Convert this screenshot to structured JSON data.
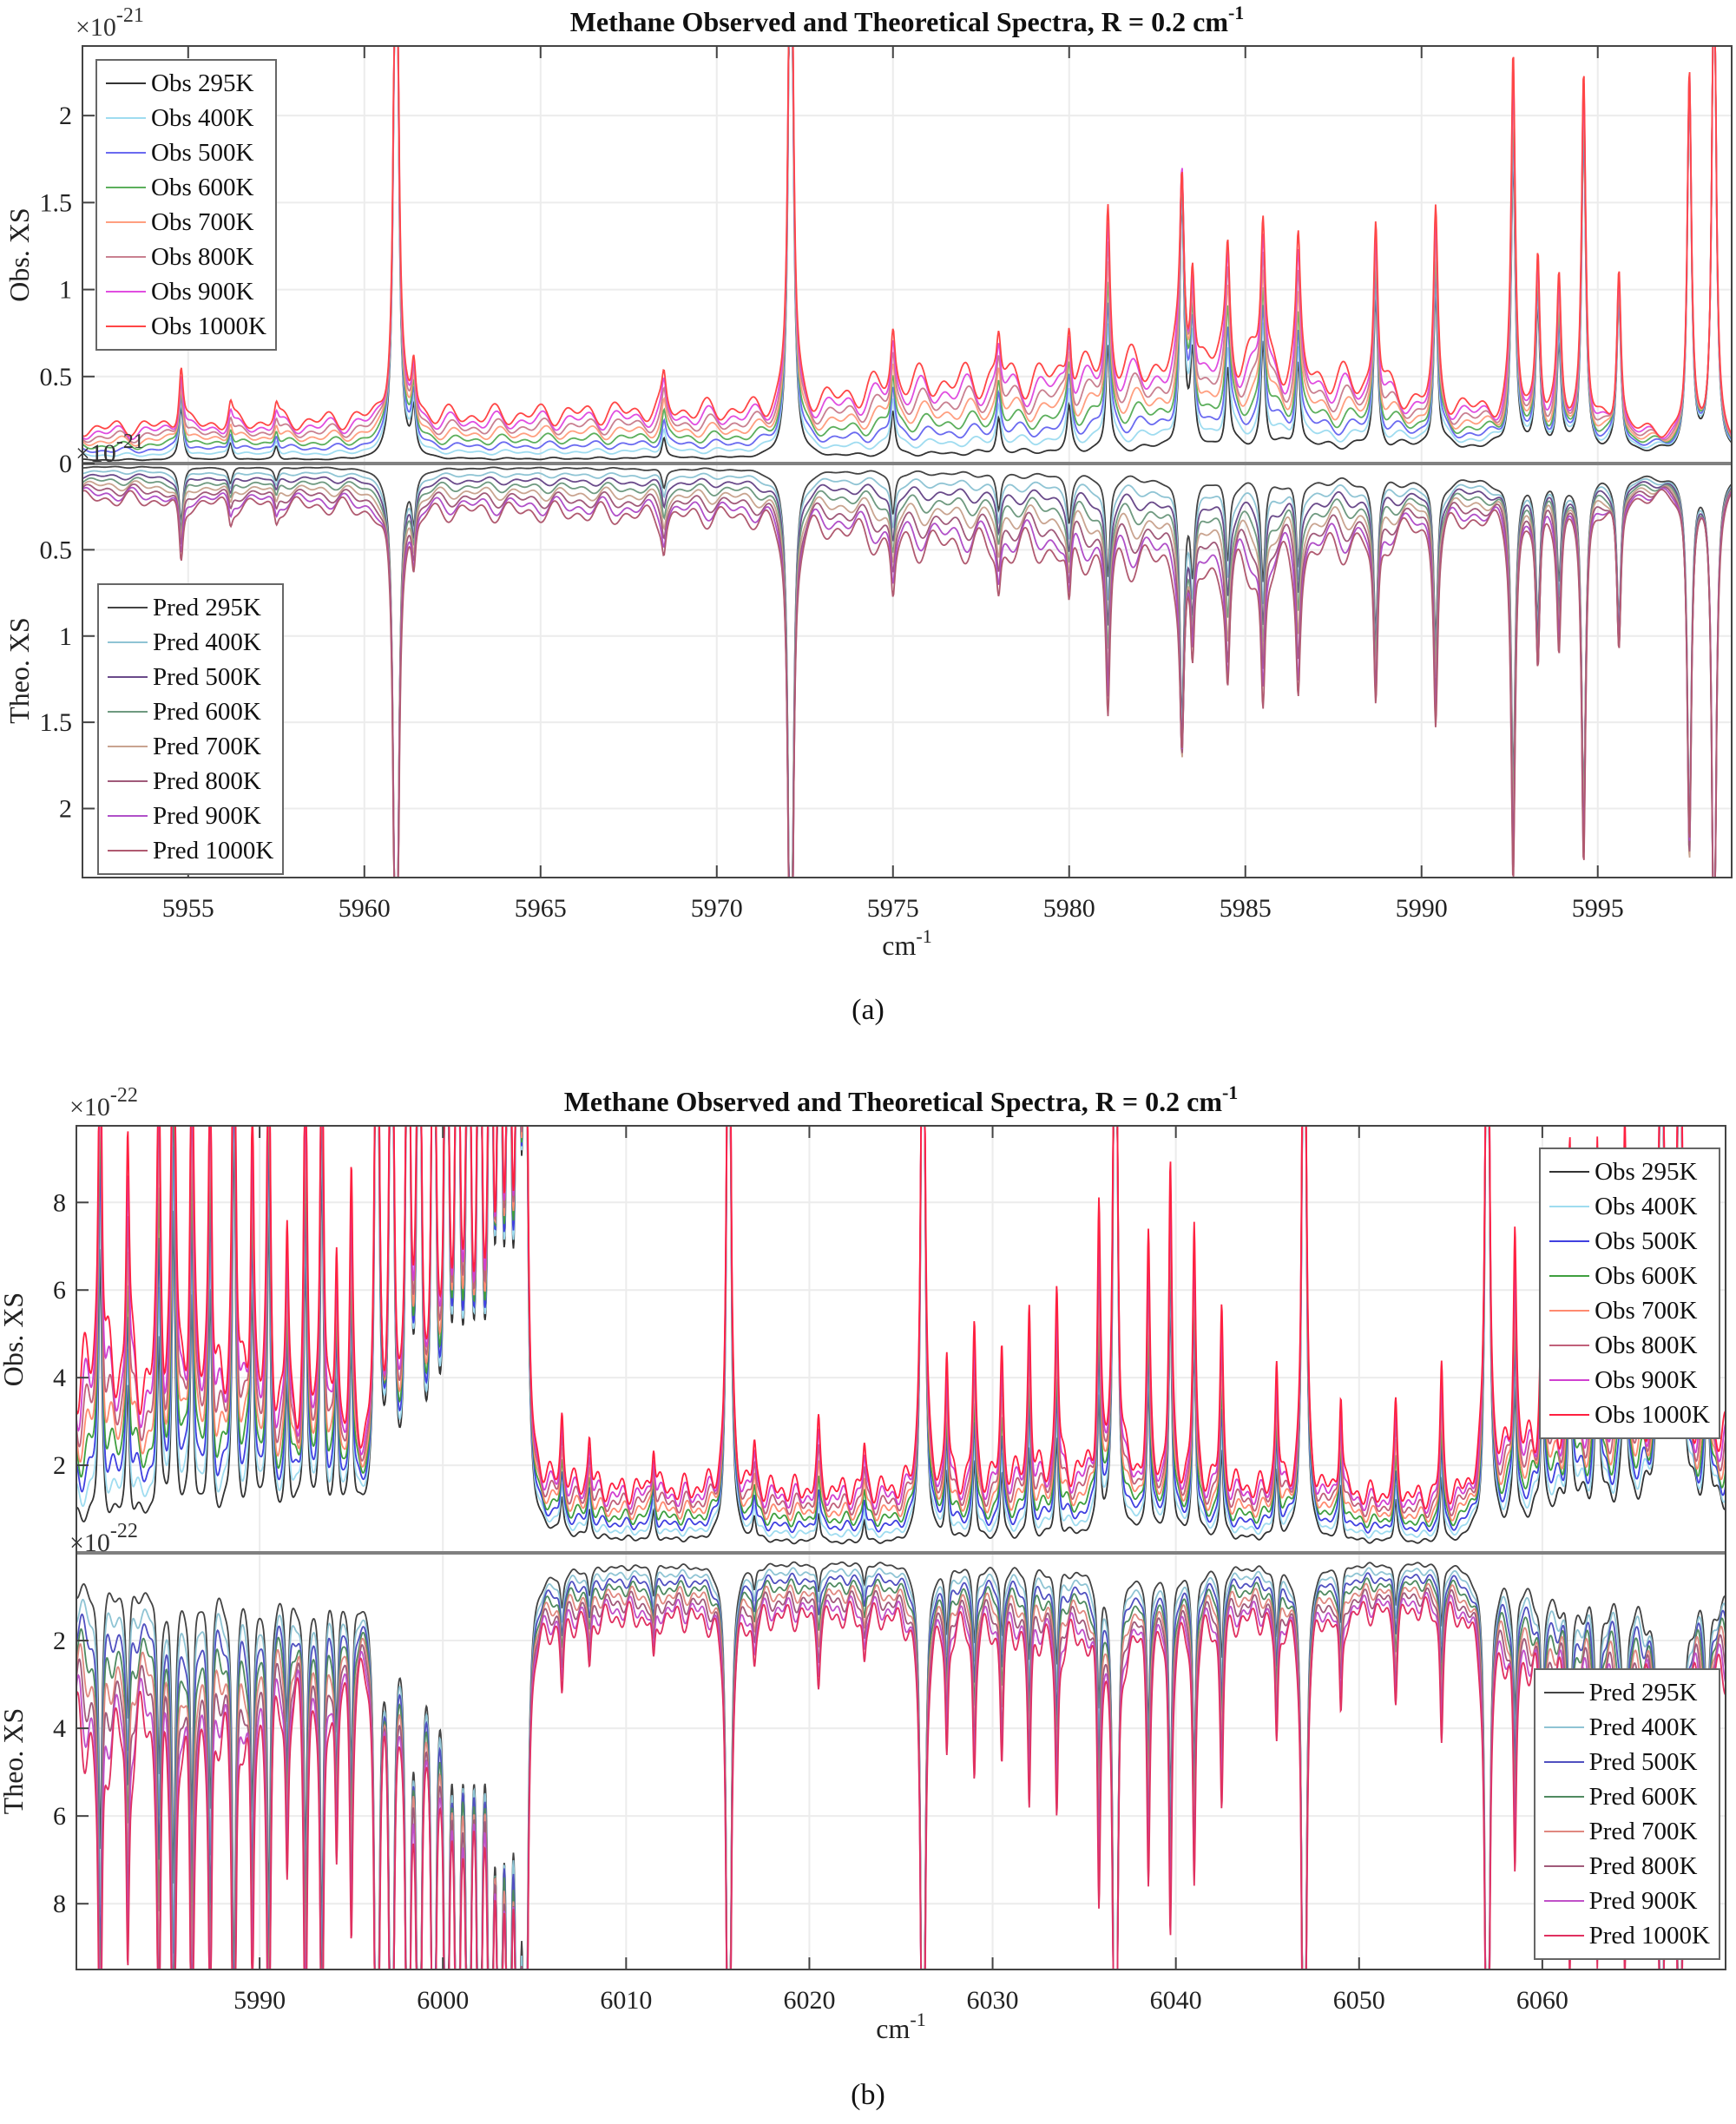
{
  "chart_data": [
    {
      "type": "line",
      "panel_caption": "(a)",
      "title": "Methane Observed and Theoretical Spectra, R = 0.2 cm",
      "title_sup": "-1",
      "xlabel": "cm",
      "xlabel_sup": "-1",
      "ylabel_top": "Obs. XS",
      "ylabel_bottom": "Theo. XS",
      "exponent_base": "×10",
      "exponent": "-21",
      "xlim": [
        5952,
        5998.8
      ],
      "ylim_top": [
        0,
        2.4
      ],
      "ylim_bottom": [
        0,
        2.4
      ],
      "xticks": [
        5955,
        5960,
        5965,
        5970,
        5975,
        5980,
        5985,
        5990,
        5995
      ],
      "yticks_top": [
        0,
        0.5,
        1,
        1.5,
        2
      ],
      "yticks_bottom": [
        0.5,
        1,
        1.5,
        2
      ],
      "grid": true,
      "legend_top_position": "top-left",
      "legend_bottom_position": "bottom-left",
      "temperatures": [
        295,
        400,
        500,
        600,
        700,
        800,
        900,
        1000
      ],
      "obs_series": [
        {
          "name": "Obs 295K",
          "color": "#333333"
        },
        {
          "name": "Obs 400K",
          "color": "#9fdcf0"
        },
        {
          "name": "Obs 500K",
          "color": "#6a6af0"
        },
        {
          "name": "Obs 600K",
          "color": "#5caf5c"
        },
        {
          "name": "Obs 700K",
          "color": "#ff9f80"
        },
        {
          "name": "Obs 800K",
          "color": "#c98090"
        },
        {
          "name": "Obs 900K",
          "color": "#e04ee0"
        },
        {
          "name": "Obs 1000K",
          "color": "#ff4646"
        }
      ],
      "pred_series": [
        {
          "name": "Pred 295K",
          "color": "#444444"
        },
        {
          "name": "Pred 400K",
          "color": "#8fc4d4"
        },
        {
          "name": "Pred 500K",
          "color": "#6a4a8a"
        },
        {
          "name": "Pred 600K",
          "color": "#6f9a80"
        },
        {
          "name": "Pred 700K",
          "color": "#c9a490"
        },
        {
          "name": "Pred 800K",
          "color": "#a05a7a"
        },
        {
          "name": "Pred 900K",
          "color": "#b050c8"
        },
        {
          "name": "Pred 1000K",
          "color": "#b05a70"
        }
      ],
      "peak_width": 0.07,
      "baseline": [
        [
          5952,
          0.02,
          0.2
        ],
        [
          5960,
          0.02,
          0.25
        ],
        [
          5968,
          0.03,
          0.3
        ],
        [
          5972,
          0.03,
          0.3
        ],
        [
          5975,
          0.05,
          0.45
        ],
        [
          5980,
          0.07,
          0.5
        ],
        [
          5985,
          0.1,
          0.6
        ],
        [
          5990,
          0.1,
          0.35
        ],
        [
          5999,
          0.05,
          0.1
        ]
      ],
      "peaks": [
        [
          5954.8,
          0.3,
          0.2
        ],
        [
          5956.2,
          0.1,
          0.2
        ],
        [
          5957.5,
          0.08,
          0.3
        ],
        [
          5960.9,
          4,
          0
        ],
        [
          5961.4,
          0.25,
          0.2
        ],
        [
          5968.5,
          0.12,
          0.5
        ],
        [
          5972.1,
          4,
          0
        ],
        [
          5975,
          0.25,
          0.3
        ],
        [
          5978,
          0.2,
          0.4
        ],
        [
          5980,
          0.25,
          0.5
        ],
        [
          5981.1,
          0.6,
          0.6
        ],
        [
          5983.2,
          1.45,
          -0.3
        ],
        [
          5983.5,
          0.5,
          0.3
        ],
        [
          5984.5,
          0.45,
          0.4
        ],
        [
          5985.5,
          0.6,
          0.4
        ],
        [
          5986.5,
          0.5,
          0.4
        ],
        [
          5988.7,
          0.85,
          0.2
        ],
        [
          5990.4,
          0.9,
          0.2
        ],
        [
          5992.6,
          1.7,
          0.2
        ],
        [
          5993.3,
          0.8,
          0.2
        ],
        [
          5993.9,
          0.6,
          0.3
        ],
        [
          5994.6,
          1.85,
          0.1
        ],
        [
          5995.6,
          0.85,
          0.1
        ],
        [
          5997.6,
          2.1,
          0
        ],
        [
          5998.3,
          3,
          0
        ]
      ]
    },
    {
      "type": "line",
      "panel_caption": "(b)",
      "title": "Methane Observed and Theoretical Spectra, R = 0.2 cm",
      "title_sup": "-1",
      "xlabel": "cm",
      "xlabel_sup": "-1",
      "ylabel_top": "Obs. XS",
      "ylabel_bottom": "Theo. XS",
      "exponent_base": "×10",
      "exponent": "-22",
      "xlim": [
        5980,
        6070
      ],
      "ylim_top": [
        0,
        9.75
      ],
      "ylim_bottom": [
        0,
        9.5
      ],
      "xticks": [
        5990,
        6000,
        6010,
        6020,
        6030,
        6040,
        6050,
        6060
      ],
      "yticks_top": [
        2,
        4,
        6,
        8
      ],
      "yticks_bottom": [
        2,
        4,
        6,
        8
      ],
      "grid": true,
      "legend_top_position": "top-right",
      "legend_bottom_position": "bottom-right",
      "temperatures": [
        295,
        400,
        500,
        600,
        700,
        800,
        900,
        1000
      ],
      "obs_series": [
        {
          "name": "Obs 295K",
          "color": "#333333"
        },
        {
          "name": "Obs 400K",
          "color": "#9fdcf0"
        },
        {
          "name": "Obs 500K",
          "color": "#4040e0"
        },
        {
          "name": "Obs 600K",
          "color": "#3f9f3f"
        },
        {
          "name": "Obs 700K",
          "color": "#ff8a70"
        },
        {
          "name": "Obs 800K",
          "color": "#c0607a"
        },
        {
          "name": "Obs 900K",
          "color": "#d040d0"
        },
        {
          "name": "Obs 1000K",
          "color": "#ff2040"
        }
      ],
      "pred_series": [
        {
          "name": "Pred 295K",
          "color": "#444444"
        },
        {
          "name": "Pred 400K",
          "color": "#8fc4d4"
        },
        {
          "name": "Pred 500K",
          "color": "#5050c0"
        },
        {
          "name": "Pred 600K",
          "color": "#4f8a60"
        },
        {
          "name": "Pred 700K",
          "color": "#e08880"
        },
        {
          "name": "Pred 800K",
          "color": "#a05a7a"
        },
        {
          "name": "Pred 900K",
          "color": "#c050c8"
        },
        {
          "name": "Pred 1000K",
          "color": "#e03060"
        }
      ],
      "peak_width": 0.1,
      "baseline": [
        [
          5980,
          0.8,
          4
        ],
        [
          5990,
          0.8,
          3
        ],
        [
          5996,
          0.6,
          2
        ],
        [
          6005,
          0.3,
          1.4
        ],
        [
          6025,
          0.2,
          1.4
        ],
        [
          6035,
          0.4,
          1.8
        ],
        [
          6045,
          0.3,
          1.4
        ],
        [
          6055,
          0.2,
          1.2
        ],
        [
          6062,
          1.2,
          3
        ],
        [
          6070,
          1.2,
          2.5
        ]
      ],
      "peaks": [
        [
          5996.4,
          20,
          0
        ],
        [
          5997.2,
          20,
          0
        ],
        [
          5998.1,
          20,
          0
        ],
        [
          5998.7,
          20,
          0
        ],
        [
          5999.5,
          20,
          0
        ],
        [
          6000.2,
          20,
          0
        ],
        [
          6000.8,
          20,
          0
        ],
        [
          6001.4,
          20,
          0
        ],
        [
          6002.0,
          20,
          0
        ],
        [
          6002.6,
          20,
          0
        ],
        [
          6003.1,
          20,
          0
        ],
        [
          6003.6,
          20,
          0
        ],
        [
          6004.1,
          20,
          0
        ],
        [
          6004.5,
          20,
          0
        ],
        [
          6015.6,
          20,
          0
        ],
        [
          6026.2,
          20,
          0
        ],
        [
          6036.7,
          20,
          0
        ],
        [
          6047.0,
          20,
          0
        ],
        [
          6057.0,
          20,
          0
        ],
        [
          6066.5,
          20,
          0
        ],
        [
          6067.5,
          20,
          0
        ],
        [
          5981.3,
          6,
          0.8
        ],
        [
          5982.8,
          3,
          1
        ],
        [
          5984.5,
          4,
          1
        ],
        [
          5985.3,
          7,
          1
        ],
        [
          5986.3,
          5,
          1
        ],
        [
          5987.3,
          5,
          0.8
        ],
        [
          5988.6,
          9,
          0.5
        ],
        [
          5989.6,
          5,
          0.5
        ],
        [
          5990.5,
          7,
          0.5
        ],
        [
          5991.5,
          3,
          0.5
        ],
        [
          5992.5,
          6,
          0.5
        ],
        [
          5993.4,
          8,
          0.5
        ],
        [
          5994.2,
          3,
          0.5
        ],
        [
          5995.0,
          4,
          0.5
        ],
        [
          6006.5,
          0.8,
          1
        ],
        [
          6008.0,
          0.6,
          1
        ],
        [
          6011.5,
          0.6,
          1
        ],
        [
          6017.0,
          0.5,
          1
        ],
        [
          6020.5,
          0.7,
          1
        ],
        [
          6023,
          0.5,
          1
        ],
        [
          6027.5,
          1.5,
          1
        ],
        [
          6029,
          1.8,
          1
        ],
        [
          6030.5,
          1.5,
          1
        ],
        [
          6032,
          2,
          1
        ],
        [
          6033.5,
          2.2,
          1
        ],
        [
          6035.8,
          3,
          1
        ],
        [
          6038.5,
          3.5,
          0.5
        ],
        [
          6039.7,
          5.5,
          0.3
        ],
        [
          6041,
          4.5,
          0.3
        ],
        [
          6042.5,
          2,
          1
        ],
        [
          6045.5,
          1.5,
          1
        ],
        [
          6049,
          1.2,
          1
        ],
        [
          6052,
          1,
          1
        ],
        [
          6054.5,
          1.5,
          1
        ],
        [
          6058.5,
          3,
          0.8
        ],
        [
          6060,
          3,
          0.8
        ],
        [
          6061.5,
          3.5,
          0.8
        ],
        [
          6063,
          4.5,
          0.5
        ],
        [
          6064.5,
          5,
          0.5
        ],
        [
          6069,
          3,
          0.5
        ]
      ]
    }
  ]
}
